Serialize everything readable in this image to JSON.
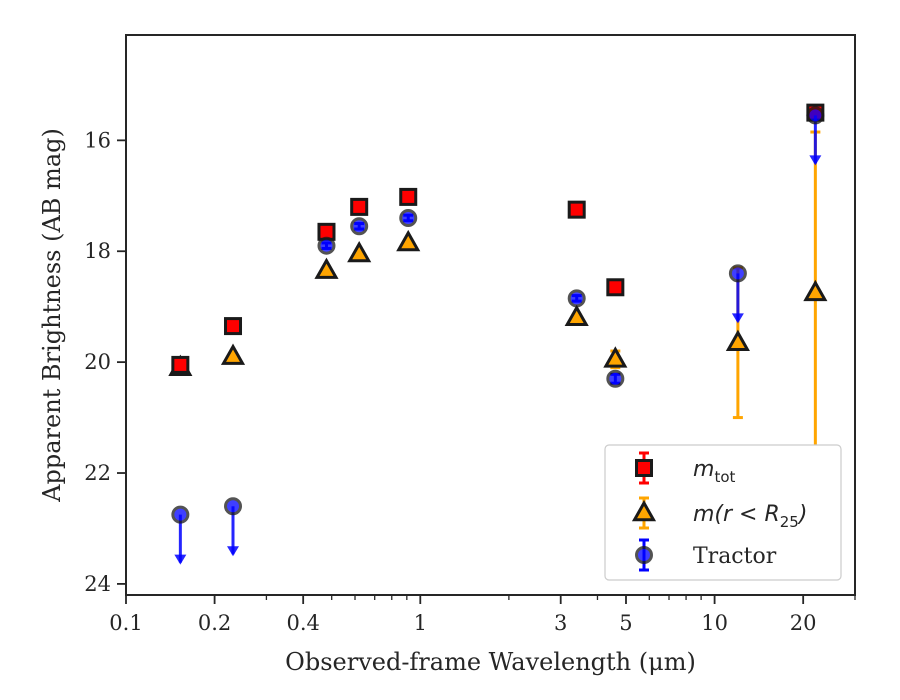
{
  "chart_data": {
    "type": "scatter",
    "title": "",
    "xlabel": "Observed-frame Wavelength (μm)",
    "ylabel": "Apparent Brightness (AB mag)",
    "xscale": "log",
    "xlim": [
      0.1,
      30
    ],
    "ylim": [
      24.2,
      14.1
    ],
    "y_inverted": true,
    "x_ticks": [
      {
        "value": 0.1,
        "label": "0.1"
      },
      {
        "value": 0.2,
        "label": "0.2"
      },
      {
        "value": 0.4,
        "label": "0.4"
      },
      {
        "value": 1,
        "label": "1"
      },
      {
        "value": 3,
        "label": "3"
      },
      {
        "value": 5,
        "label": "5"
      },
      {
        "value": 10,
        "label": "10"
      },
      {
        "value": 20,
        "label": "20"
      }
    ],
    "y_ticks": [
      {
        "value": 16,
        "label": "16"
      },
      {
        "value": 18,
        "label": "18"
      },
      {
        "value": 20,
        "label": "20"
      },
      {
        "value": 22,
        "label": "22"
      },
      {
        "value": 24,
        "label": "24"
      }
    ],
    "grid": false,
    "legend_position": "lower-right",
    "series": [
      {
        "name": "m_tot",
        "label_main": "m",
        "label_sub": "tot",
        "marker": "square",
        "color": "#ff0000",
        "edge_color": "#1a1a1a",
        "err_color": "#ff0000",
        "points": [
          {
            "x": 0.153,
            "y": 20.05,
            "yerr": 0.08
          },
          {
            "x": 0.231,
            "y": 19.35,
            "yerr": 0.05
          },
          {
            "x": 0.48,
            "y": 17.65,
            "yerr": 0.05
          },
          {
            "x": 0.62,
            "y": 17.2,
            "yerr": 0.05
          },
          {
            "x": 0.91,
            "y": 17.02,
            "yerr": 0.05
          },
          {
            "x": 3.4,
            "y": 17.25,
            "yerr": 0.05
          },
          {
            "x": 4.6,
            "y": 18.65,
            "yerr": 0.05
          },
          {
            "x": 22,
            "y": 15.5,
            "yerr": 0.05
          }
        ]
      },
      {
        "name": "m(r < R25)",
        "label_main": "m(r < R",
        "label_sub": "25",
        "label_tail": ")",
        "marker": "triangle",
        "color": "#ffa500",
        "edge_color": "#1a1a1a",
        "err_color": "#ffa500",
        "points": [
          {
            "x": 0.153,
            "y": 20.1,
            "yerr": 0.12
          },
          {
            "x": 0.231,
            "y": 19.9,
            "yerr": 0.05
          },
          {
            "x": 0.48,
            "y": 18.35,
            "yerr": 0.05
          },
          {
            "x": 0.62,
            "y": 18.05,
            "yerr": 0.05
          },
          {
            "x": 0.91,
            "y": 17.85,
            "yerr": 0.05
          },
          {
            "x": 3.4,
            "y": 19.2,
            "yerr": 0.05
          },
          {
            "x": 4.6,
            "y": 19.95,
            "yerr": 0.15
          },
          {
            "x": 12,
            "y": 19.65,
            "yerr": 1.35
          },
          {
            "x": 22,
            "y": 18.75,
            "yerr": 2.9
          }
        ]
      },
      {
        "name": "Tractor",
        "marker": "circle",
        "color": "#0000ff",
        "edge_color": "#1a1a1a",
        "err_color": "#0000ff",
        "points": [
          {
            "x": 0.153,
            "y": 22.75,
            "upper_limit": true
          },
          {
            "x": 0.231,
            "y": 22.6,
            "upper_limit": true
          },
          {
            "x": 0.48,
            "y": 17.9,
            "yerr": 0.05
          },
          {
            "x": 0.62,
            "y": 17.55,
            "yerr": 0.05
          },
          {
            "x": 0.91,
            "y": 17.4,
            "yerr": 0.05
          },
          {
            "x": 3.4,
            "y": 18.85,
            "yerr": 0.05
          },
          {
            "x": 4.6,
            "y": 20.3,
            "yerr": 0.08
          },
          {
            "x": 12,
            "y": 18.4,
            "upper_limit": true
          },
          {
            "x": 22,
            "y": 15.55,
            "upper_limit": true
          }
        ]
      }
    ]
  }
}
